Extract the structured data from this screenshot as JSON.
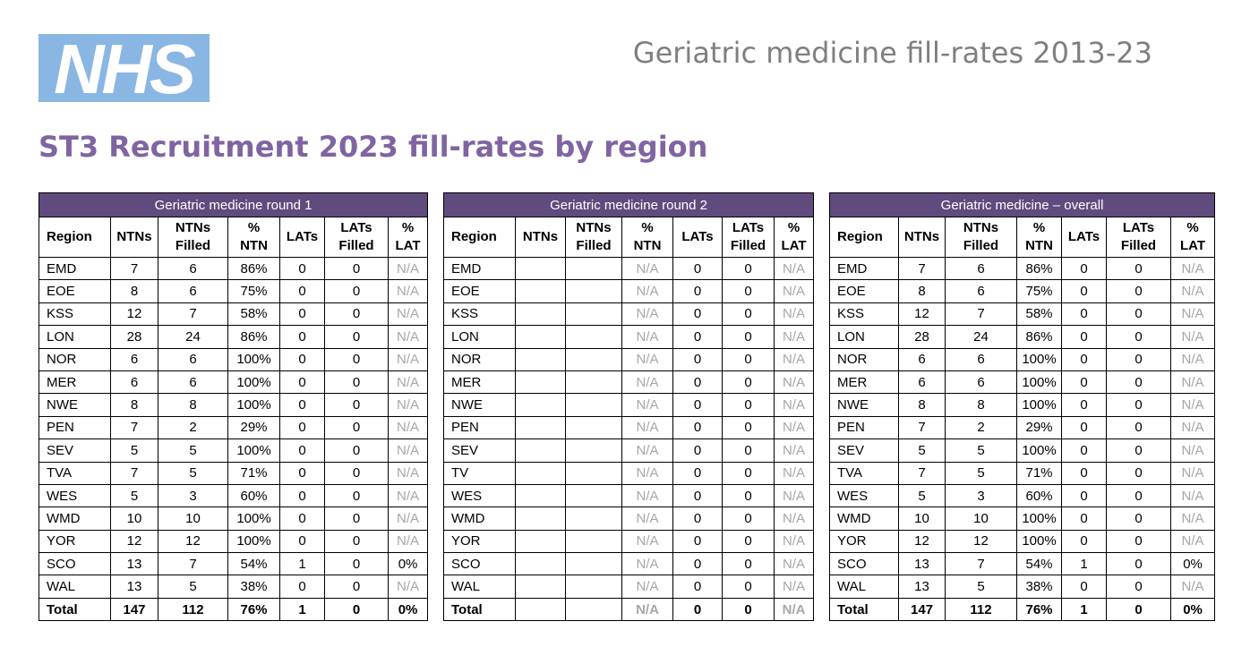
{
  "logo": {
    "text": "NHS",
    "color": "#8ab6e3"
  },
  "doc_title": "Geriatric medicine fill-rates 2013-23",
  "page_title": "ST3 Recruitment 2023 fill-rates by region",
  "colors": {
    "header_bg": "#5f4b7e",
    "title_purple": "#8064a2",
    "na_grey": "#a6a6a6"
  },
  "tables": [
    {
      "title": "Geriatric medicine round 1",
      "columns": [
        "Region",
        "NTNs",
        "NTNs\nFilled",
        "%\nNTN",
        "LATs",
        "LATs\nFilled",
        "%\nLAT"
      ],
      "rows": [
        [
          "EMD",
          "7",
          "6",
          "86%",
          "0",
          "0",
          "N/A"
        ],
        [
          "EOE",
          "8",
          "6",
          "75%",
          "0",
          "0",
          "N/A"
        ],
        [
          "KSS",
          "12",
          "7",
          "58%",
          "0",
          "0",
          "N/A"
        ],
        [
          "LON",
          "28",
          "24",
          "86%",
          "0",
          "0",
          "N/A"
        ],
        [
          "NOR",
          "6",
          "6",
          "100%",
          "0",
          "0",
          "N/A"
        ],
        [
          "MER",
          "6",
          "6",
          "100%",
          "0",
          "0",
          "N/A"
        ],
        [
          "NWE",
          "8",
          "8",
          "100%",
          "0",
          "0",
          "N/A"
        ],
        [
          "PEN",
          "7",
          "2",
          "29%",
          "0",
          "0",
          "N/A"
        ],
        [
          "SEV",
          "5",
          "5",
          "100%",
          "0",
          "0",
          "N/A"
        ],
        [
          "TVA",
          "7",
          "5",
          "71%",
          "0",
          "0",
          "N/A"
        ],
        [
          "WES",
          "5",
          "3",
          "60%",
          "0",
          "0",
          "N/A"
        ],
        [
          "WMD",
          "10",
          "10",
          "100%",
          "0",
          "0",
          "N/A"
        ],
        [
          "YOR",
          "12",
          "12",
          "100%",
          "0",
          "0",
          "N/A"
        ],
        [
          "SCO",
          "13",
          "7",
          "54%",
          "1",
          "0",
          "0%"
        ],
        [
          "WAL",
          "13",
          "5",
          "38%",
          "0",
          "0",
          "N/A"
        ]
      ],
      "total": [
        "Total",
        "147",
        "112",
        "76%",
        "1",
        "0",
        "0%"
      ]
    },
    {
      "title": "Geriatric medicine round 2",
      "columns": [
        "Region",
        "NTNs",
        "NTNs\nFilled",
        "%\nNTN",
        "LATs",
        "LATs\nFilled",
        "%\nLAT"
      ],
      "rows": [
        [
          "EMD",
          "",
          "",
          "N/A",
          "0",
          "0",
          "N/A"
        ],
        [
          "EOE",
          "",
          "",
          "N/A",
          "0",
          "0",
          "N/A"
        ],
        [
          "KSS",
          "",
          "",
          "N/A",
          "0",
          "0",
          "N/A"
        ],
        [
          "LON",
          "",
          "",
          "N/A",
          "0",
          "0",
          "N/A"
        ],
        [
          "NOR",
          "",
          "",
          "N/A",
          "0",
          "0",
          "N/A"
        ],
        [
          "MER",
          "",
          "",
          "N/A",
          "0",
          "0",
          "N/A"
        ],
        [
          "NWE",
          "",
          "",
          "N/A",
          "0",
          "0",
          "N/A"
        ],
        [
          "PEN",
          "",
          "",
          "N/A",
          "0",
          "0",
          "N/A"
        ],
        [
          "SEV",
          "",
          "",
          "N/A",
          "0",
          "0",
          "N/A"
        ],
        [
          "TV",
          "",
          "",
          "N/A",
          "0",
          "0",
          "N/A"
        ],
        [
          "WES",
          "",
          "",
          "N/A",
          "0",
          "0",
          "N/A"
        ],
        [
          "WMD",
          "",
          "",
          "N/A",
          "0",
          "0",
          "N/A"
        ],
        [
          "YOR",
          "",
          "",
          "N/A",
          "0",
          "0",
          "N/A"
        ],
        [
          "SCO",
          "",
          "",
          "N/A",
          "0",
          "0",
          "N/A"
        ],
        [
          "WAL",
          "",
          "",
          "N/A",
          "0",
          "0",
          "N/A"
        ]
      ],
      "total": [
        "Total",
        "",
        "",
        "N/A",
        "0",
        "0",
        "N/A"
      ]
    },
    {
      "title": "Geriatric medicine – overall",
      "columns": [
        "Region",
        "NTNs",
        "NTNs\nFilled",
        "%\nNTN",
        "LATs",
        "LATs\nFilled",
        "%\nLAT"
      ],
      "rows": [
        [
          "EMD",
          "7",
          "6",
          "86%",
          "0",
          "0",
          "N/A"
        ],
        [
          "EOE",
          "8",
          "6",
          "75%",
          "0",
          "0",
          "N/A"
        ],
        [
          "KSS",
          "12",
          "7",
          "58%",
          "0",
          "0",
          "N/A"
        ],
        [
          "LON",
          "28",
          "24",
          "86%",
          "0",
          "0",
          "N/A"
        ],
        [
          "NOR",
          "6",
          "6",
          "100%",
          "0",
          "0",
          "N/A"
        ],
        [
          "MER",
          "6",
          "6",
          "100%",
          "0",
          "0",
          "N/A"
        ],
        [
          "NWE",
          "8",
          "8",
          "100%",
          "0",
          "0",
          "N/A"
        ],
        [
          "PEN",
          "7",
          "2",
          "29%",
          "0",
          "0",
          "N/A"
        ],
        [
          "SEV",
          "5",
          "5",
          "100%",
          "0",
          "0",
          "N/A"
        ],
        [
          "TVA",
          "7",
          "5",
          "71%",
          "0",
          "0",
          "N/A"
        ],
        [
          "WES",
          "5",
          "3",
          "60%",
          "0",
          "0",
          "N/A"
        ],
        [
          "WMD",
          "10",
          "10",
          "100%",
          "0",
          "0",
          "N/A"
        ],
        [
          "YOR",
          "12",
          "12",
          "100%",
          "0",
          "0",
          "N/A"
        ],
        [
          "SCO",
          "13",
          "7",
          "54%",
          "1",
          "0",
          "0%"
        ],
        [
          "WAL",
          "13",
          "5",
          "38%",
          "0",
          "0",
          "N/A"
        ]
      ],
      "total": [
        "Total",
        "147",
        "112",
        "76%",
        "1",
        "0",
        "0%"
      ]
    }
  ]
}
